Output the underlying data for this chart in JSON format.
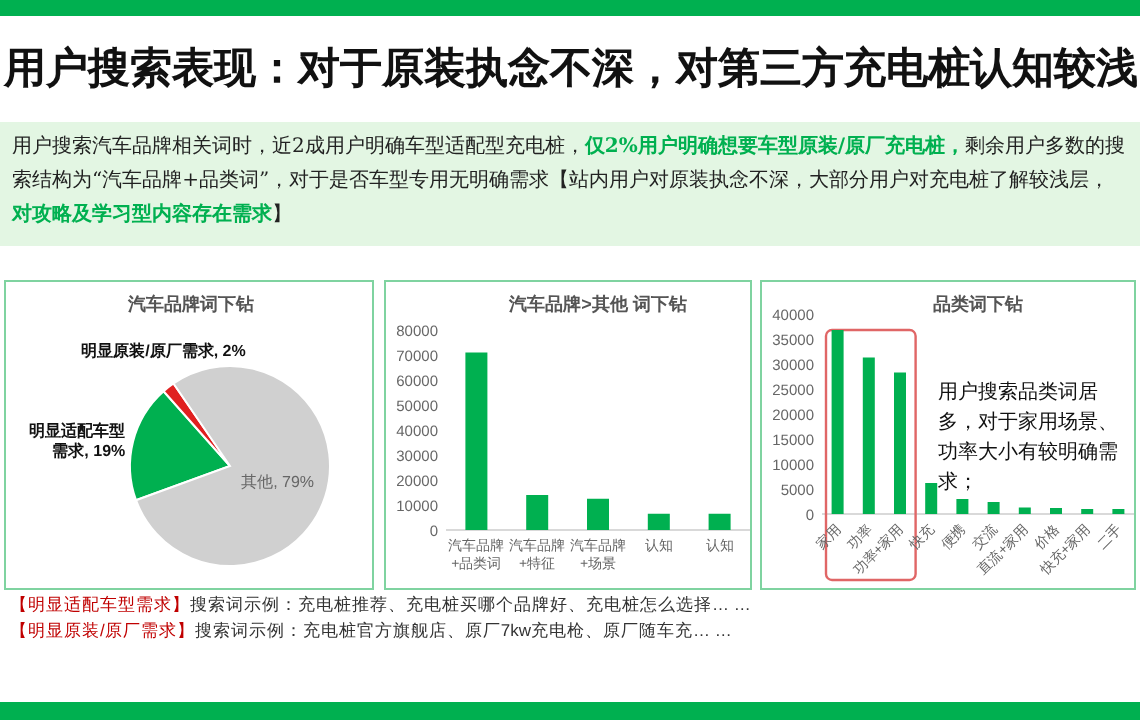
{
  "chart_data": [
    {
      "type": "other",
      "title": "用户搜索表现：对于原装执念不深，对第三方充电桩认知较浅",
      "annotations": [
        "用户搜索汽车品牌相关词时，近2成用户明确车型适配型充电桩，",
        "仅2%用户明确想要车型原装/原厂充电桩，",
        "剩余用户多数的搜索结构为“汽车品牌+品类词”，对于是否车型专用无明确需求【站内用户对原装执念不深，大部分用户对充电桩了解较浅层，",
        "对攻略及学习型内容存在需求",
        "】",
        "【明显适配车型需求】",
        "搜索词示例：充电桩推荐、充电桩买哪个品牌好、充电桩怎么选择… …",
        "【明显原装/原厂需求】",
        "搜索词示例：充电桩官方旗舰店、原厂7kw充电枪、原厂随车充… …"
      ]
    },
    {
      "type": "pie",
      "title": "汽车品牌词下钻",
      "categories": [
        "明显适配车型需求",
        "明显原装/原厂需求",
        "其他"
      ],
      "values": [
        19,
        2,
        79
      ],
      "colors": [
        "#00b050",
        "#e02020",
        "#d0d0d0"
      ],
      "value_labels": [
        "19%",
        "2%",
        "79%"
      ]
    },
    {
      "type": "bar",
      "title": "汽车品牌>其他 词下钻",
      "categories": [
        "汽车品牌+品类词",
        "汽车品牌+特征",
        "汽车品牌+场景",
        "认知",
        "认知"
      ],
      "values": [
        71000,
        14000,
        12500,
        6500,
        6500
      ],
      "color": "#00b050",
      "ylim": [
        0,
        80000
      ],
      "yticks": [
        0,
        10000,
        20000,
        30000,
        40000,
        50000,
        60000,
        70000,
        80000
      ]
    },
    {
      "type": "bar",
      "title": "品类词下钻",
      "categories": [
        "家用",
        "功率",
        "功率+家用",
        "快充",
        "便携",
        "交流",
        "直流+家用",
        "价格",
        "快充+家用",
        "二手"
      ],
      "values": [
        36800,
        31300,
        28300,
        6200,
        3000,
        2400,
        1300,
        1200,
        1000,
        1000
      ],
      "color": "#00b050",
      "ylim": [
        0,
        40000
      ],
      "yticks": [
        0,
        5000,
        10000,
        15000,
        20000,
        25000,
        30000,
        35000,
        40000
      ],
      "annotations": [
        "用户搜索品类词居多，对于家用场景、功率大小有较明确需求；"
      ]
    }
  ]
}
